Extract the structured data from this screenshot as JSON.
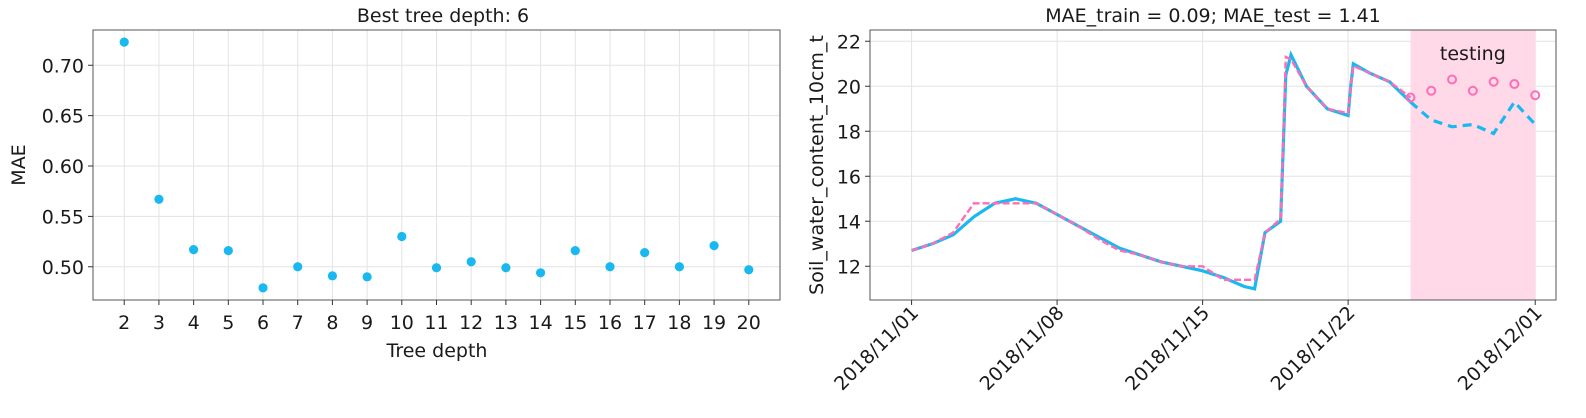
{
  "chart_data": [
    {
      "type": "scatter",
      "title": "Best tree depth: 6",
      "xlabel": "Tree depth",
      "ylabel": "MAE",
      "x": [
        2,
        3,
        4,
        5,
        6,
        7,
        8,
        9,
        10,
        11,
        12,
        13,
        14,
        15,
        16,
        17,
        18,
        19,
        20
      ],
      "y": [
        0.723,
        0.567,
        0.517,
        0.516,
        0.479,
        0.5,
        0.491,
        0.49,
        0.53,
        0.499,
        0.505,
        0.499,
        0.494,
        0.516,
        0.5,
        0.514,
        0.5,
        0.521,
        0.497
      ],
      "xlim": [
        1.1,
        20.9
      ],
      "ylim": [
        0.467,
        0.735
      ],
      "xticks": [
        "2",
        "3",
        "4",
        "5",
        "6",
        "7",
        "8",
        "9",
        "10",
        "11",
        "12",
        "13",
        "14",
        "15",
        "16",
        "17",
        "18",
        "19",
        "20"
      ],
      "yticks": [
        "0.50",
        "0.55",
        "0.60",
        "0.65",
        "0.70"
      ],
      "grid": true,
      "colors": {
        "points": "#1ab8f0"
      }
    },
    {
      "type": "line",
      "title": "MAE_train = 0.09; MAE_test = 1.41",
      "xlabel": "",
      "ylabel": "Soil_water_content_10cm_t",
      "xlim": [
        "2018-10-30",
        "2018-12-02"
      ],
      "ylim": [
        10.5,
        22.5
      ],
      "xticks": [
        "2018/11/01",
        "2018/11/08",
        "2018/11/15",
        "2018/11/22",
        "2018/12/01"
      ],
      "yticks": [
        "12",
        "14",
        "16",
        "18",
        "20",
        "22"
      ],
      "grid": true,
      "testing_region": {
        "label": "testing",
        "start": "2018-11-25",
        "end": "2018-12-01",
        "color": "#ffd9e8",
        "label_color": "#ff6eb4"
      },
      "series": [
        {
          "role": "observed",
          "color": "#1ab8f0",
          "x": [
            "2018-11-01",
            "2018-11-02",
            "2018-11-03",
            "2018-11-04",
            "2018-11-05",
            "2018-11-06",
            "2018-11-07",
            "2018-11-08",
            "2018-11-09",
            "2018-11-10",
            "2018-11-11",
            "2018-11-12",
            "2018-11-13",
            "2018-11-14",
            "2018-11-15",
            "2018-11-16",
            "2018-11-17",
            "2018-11-17 12:00",
            "2018-11-18",
            "2018-11-18 18:00",
            "2018-11-19",
            "2018-11-19 06:00",
            "2018-11-20",
            "2018-11-21",
            "2018-11-22",
            "2018-11-22 03:00",
            "2018-11-22 06:00",
            "2018-11-23",
            "2018-11-24",
            "2018-11-25",
            "2018-11-26",
            "2018-11-27",
            "2018-11-28",
            "2018-11-29",
            "2018-11-30",
            "2018-12-01"
          ],
          "y": [
            12.7,
            13.0,
            13.4,
            14.2,
            14.8,
            15.0,
            14.8,
            14.3,
            13.8,
            13.3,
            12.8,
            12.5,
            12.2,
            12.0,
            11.8,
            11.5,
            11.1,
            11.0,
            13.5,
            14.0,
            20.5,
            21.4,
            20.0,
            19.0,
            18.7,
            20.0,
            21.0,
            20.6,
            20.2,
            19.3,
            18.5,
            18.2,
            18.3,
            17.9,
            19.3,
            18.3
          ]
        },
        {
          "role": "predicted",
          "color": "#ff6eb4",
          "x": [
            "2018-11-01",
            "2018-11-02",
            "2018-11-03",
            "2018-11-04",
            "2018-11-05",
            "2018-11-06",
            "2018-11-07",
            "2018-11-08",
            "2018-11-09",
            "2018-11-10",
            "2018-11-11",
            "2018-11-12",
            "2018-11-13",
            "2018-11-14",
            "2018-11-15",
            "2018-11-16",
            "2018-11-17",
            "2018-11-17 12:00",
            "2018-11-18",
            "2018-11-18 18:00",
            "2018-11-19",
            "2018-11-19 06:00",
            "2018-11-20",
            "2018-11-21",
            "2018-11-22",
            "2018-11-22 03:00",
            "2018-11-22 06:00",
            "2018-11-23",
            "2018-11-24",
            "2018-11-25",
            "2018-11-26",
            "2018-11-27",
            "2018-11-28",
            "2018-11-29",
            "2018-11-30",
            "2018-12-01"
          ],
          "y": [
            12.7,
            13.0,
            13.5,
            14.8,
            14.8,
            14.8,
            14.8,
            14.3,
            13.8,
            13.2,
            12.7,
            12.5,
            12.2,
            12.0,
            12.0,
            11.4,
            11.4,
            11.4,
            13.5,
            14.1,
            21.3,
            21.2,
            20.0,
            19.0,
            18.8,
            20.0,
            20.9,
            20.6,
            20.2,
            19.5,
            19.8,
            20.3,
            19.8,
            20.2,
            20.1,
            19.6
          ]
        }
      ]
    }
  ]
}
